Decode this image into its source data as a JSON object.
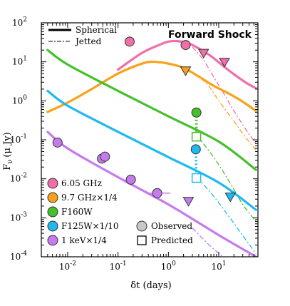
{
  "chart_data": {
    "type": "line",
    "title": "Forward Shock",
    "xlabel": "δt (days)",
    "ylabel": "Fν (μ Jy)",
    "ylabel_main": "F",
    "ylabel_sub": "ν",
    "ylabel_unit": "(μ Jy)",
    "xscale": "log",
    "yscale": "log",
    "xlim": [
      0.003,
      60
    ],
    "ylim": [
      0.0001,
      100
    ],
    "x_ticks": [
      {
        "value": 0.01,
        "base": "10",
        "exp": "-2"
      },
      {
        "value": 0.1,
        "base": "10",
        "exp": "-1"
      },
      {
        "value": 1,
        "base": "10",
        "exp": "0"
      },
      {
        "value": 10,
        "base": "10",
        "exp": "1"
      }
    ],
    "y_ticks": [
      {
        "value": 0.0001,
        "base": "10",
        "exp": "-4"
      },
      {
        "value": 0.001,
        "base": "10",
        "exp": "-3"
      },
      {
        "value": 0.01,
        "base": "10",
        "exp": "-2"
      },
      {
        "value": 0.1,
        "base": "10",
        "exp": "-1"
      },
      {
        "value": 1,
        "base": "10",
        "exp": "0"
      },
      {
        "value": 10,
        "base": "10",
        "exp": "1"
      },
      {
        "value": 100,
        "base": "10",
        "exp": "2"
      }
    ],
    "line_style_legend": [
      {
        "label": "Spherical",
        "style": "solid"
      },
      {
        "label": "Jetted",
        "style": "dashdot"
      }
    ],
    "marker_legend": [
      {
        "label": "Observed",
        "marker": "circle"
      },
      {
        "label": "Predicted",
        "marker": "square"
      }
    ],
    "series": [
      {
        "name": "6.05 GHz",
        "color": "#f06eaa",
        "model_spherical": [
          [
            0.1,
            6.3
          ],
          [
            0.3,
            17
          ],
          [
            0.7,
            28
          ],
          [
            1.0,
            33
          ],
          [
            1.5,
            34
          ],
          [
            2.5,
            30
          ],
          [
            4,
            22
          ],
          [
            7,
            14
          ],
          [
            12,
            8
          ],
          [
            20,
            4.8
          ],
          [
            35,
            2.9
          ],
          [
            55,
            2.1
          ]
        ],
        "model_jetted": [
          [
            3.0,
            24
          ],
          [
            5,
            11
          ],
          [
            8,
            4
          ],
          [
            12,
            1.7
          ],
          [
            20,
            0.55
          ],
          [
            35,
            0.18
          ],
          [
            55,
            0.08
          ]
        ],
        "observed": [
          [
            0.17,
            33
          ],
          [
            2.2,
            27
          ]
        ],
        "upper_limits": [
          [
            5.0,
            17
          ],
          [
            13,
            10
          ]
        ]
      },
      {
        "name": "9.7 GHz×1/4",
        "color": "#f7a21a",
        "model_spherical": [
          [
            0.004,
            0.52
          ],
          [
            0.01,
            0.9
          ],
          [
            0.03,
            2.0
          ],
          [
            0.1,
            5.0
          ],
          [
            0.3,
            9.0
          ],
          [
            0.5,
            10.0
          ],
          [
            1.0,
            9.0
          ],
          [
            2,
            7.0
          ],
          [
            4,
            4.2
          ],
          [
            8,
            2.4
          ],
          [
            15,
            1.6
          ],
          [
            30,
            0.95
          ],
          [
            55,
            0.55
          ]
        ],
        "model_jetted": [
          [
            3.0,
            5.5
          ],
          [
            6,
            2.6
          ],
          [
            10,
            1.0
          ],
          [
            20,
            0.3
          ],
          [
            35,
            0.11
          ],
          [
            55,
            0.055
          ]
        ],
        "upper_limits": [
          [
            2.2,
            6.0
          ]
        ]
      },
      {
        "name": "F160W",
        "color": "#44c12a",
        "model_spherical": [
          [
            0.004,
            20
          ],
          [
            0.01,
            8.5
          ],
          [
            0.1,
            1.8
          ],
          [
            1,
            0.4
          ],
          [
            10,
            0.09
          ],
          [
            55,
            0.017
          ]
        ],
        "model_jetted": [
          [
            3.7,
            0.13
          ],
          [
            8,
            0.035
          ],
          [
            15,
            0.01
          ],
          [
            30,
            0.0022
          ],
          [
            55,
            0.0008
          ]
        ],
        "observed": [
          [
            3.6,
            0.5
          ]
        ],
        "predicted": [
          [
            3.6,
            0.12
          ]
        ]
      },
      {
        "name": "F125W×1/10",
        "color": "#1fb9f0",
        "model_spherical": [
          [
            0.004,
            1.8
          ],
          [
            0.01,
            0.75
          ],
          [
            0.1,
            0.16
          ],
          [
            1,
            0.036
          ],
          [
            10,
            0.008
          ],
          [
            55,
            0.0016
          ]
        ],
        "model_jetted": [
          [
            3.7,
            0.011
          ],
          [
            8,
            0.0035
          ],
          [
            15,
            0.0012
          ],
          [
            30,
            0.00035
          ],
          [
            55,
            0.00012
          ]
        ],
        "observed": [
          [
            3.5,
            0.057
          ]
        ],
        "predicted": [
          [
            3.6,
            0.0105
          ]
        ],
        "upper_limits": [
          [
            17,
            0.0035
          ]
        ]
      },
      {
        "name": "1 keV×1/4",
        "color": "#c57bee",
        "model_spherical": [
          [
            0.004,
            0.16
          ],
          [
            0.01,
            0.06
          ],
          [
            0.1,
            0.011
          ],
          [
            1,
            0.0022
          ],
          [
            10,
            0.00036
          ],
          [
            55,
            0.0001
          ]
        ],
        "model_jetted": [
          [
            3.0,
            0.00055
          ],
          [
            6,
            0.00022
          ],
          [
            12,
            0.0001
          ]
        ],
        "observed": [
          [
            0.0063,
            0.085
          ],
          [
            0.048,
            0.033
          ],
          [
            0.055,
            0.037
          ],
          [
            0.18,
            0.0095
          ],
          [
            0.6,
            0.0043
          ]
        ],
        "observed_xerr": [
          [
            0.35,
            1.1
          ]
        ],
        "upper_limits": [
          [
            2.5,
            0.0027
          ]
        ]
      }
    ]
  }
}
